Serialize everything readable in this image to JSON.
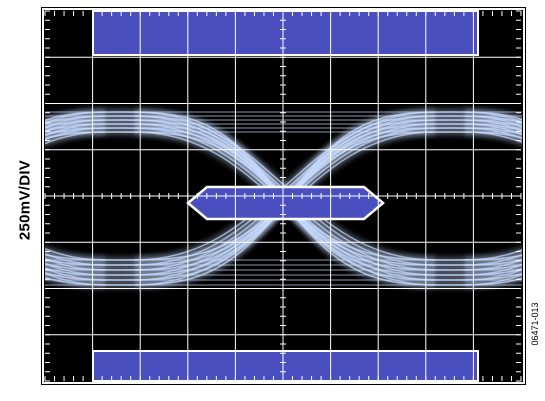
{
  "chart_data": {
    "type": "eye-diagram",
    "y_scale_label": "250mV/DIV",
    "grid": {
      "x_divisions": 10,
      "y_divisions": 8,
      "minor_ticks_per_division": 5
    },
    "trace_color": "#c8dcff",
    "mask_fill": "#4a4fc0",
    "mask_outline": "#ffffff"
  },
  "figure_id": "06471-013"
}
